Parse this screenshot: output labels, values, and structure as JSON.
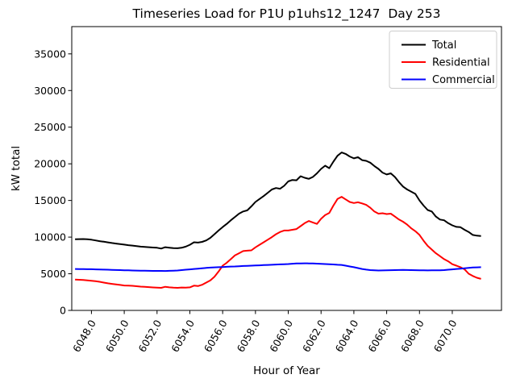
{
  "title": "Timeseries Load for P1U p1uhs12_1247  Day 253",
  "xlabel": "Hour of Year",
  "ylabel": "kW total",
  "legend": {
    "position": "upper right",
    "entries": [
      {
        "label": "Total",
        "color": "#000000"
      },
      {
        "label": "Residential",
        "color": "#ff0000"
      },
      {
        "label": "Commercial",
        "color": "#0000ff"
      }
    ]
  },
  "axis": {
    "xlim": [
      6046.8,
      6073.0
    ],
    "ylim": [
      0,
      38720
    ],
    "xticks": [
      6048,
      6050,
      6052,
      6054,
      6056,
      6058,
      6060,
      6062,
      6064,
      6066,
      6068,
      6070
    ],
    "xtick_labels": [
      "6048.0",
      "6050.0",
      "6052.0",
      "6054.0",
      "6056.0",
      "6058.0",
      "6060.0",
      "6062.0",
      "6064.0",
      "6066.0",
      "6068.0",
      "6070.0"
    ],
    "xtick_rotation": -60,
    "yticks": [
      0,
      5000,
      10000,
      15000,
      20000,
      25000,
      30000,
      35000
    ],
    "ytick_labels": [
      "0",
      "5000",
      "10000",
      "15000",
      "20000",
      "25000",
      "30000",
      "35000"
    ],
    "grid": false
  },
  "chart_data": {
    "type": "line",
    "title": "Timeseries Load for P1U p1uhs12_1247  Day 253",
    "xlabel": "Hour of Year",
    "ylabel": "kW total",
    "xlim": [
      6046.8,
      6073.0
    ],
    "ylim": [
      0,
      38720
    ],
    "legend_position": "upper right",
    "grid": false,
    "x": [
      6047.0,
      6047.25,
      6047.5,
      6047.75,
      6048.0,
      6048.25,
      6048.5,
      6048.75,
      6049.0,
      6049.25,
      6049.5,
      6049.75,
      6050.0,
      6050.25,
      6050.5,
      6050.75,
      6051.0,
      6051.25,
      6051.5,
      6051.75,
      6052.0,
      6052.25,
      6052.5,
      6052.75,
      6053.0,
      6053.25,
      6053.5,
      6053.75,
      6054.0,
      6054.25,
      6054.5,
      6054.75,
      6055.0,
      6055.25,
      6055.5,
      6055.75,
      6056.0,
      6056.25,
      6056.5,
      6056.75,
      6057.0,
      6057.25,
      6057.5,
      6057.75,
      6058.0,
      6058.25,
      6058.5,
      6058.75,
      6059.0,
      6059.25,
      6059.5,
      6059.75,
      6060.0,
      6060.25,
      6060.5,
      6060.75,
      6061.0,
      6061.25,
      6061.5,
      6061.75,
      6062.0,
      6062.25,
      6062.5,
      6062.75,
      6063.0,
      6063.25,
      6063.5,
      6063.75,
      6064.0,
      6064.25,
      6064.5,
      6064.75,
      6065.0,
      6065.25,
      6065.5,
      6065.75,
      6066.0,
      6066.25,
      6066.5,
      6066.75,
      6067.0,
      6067.25,
      6067.5,
      6067.75,
      6068.0,
      6068.25,
      6068.5,
      6068.75,
      6069.0,
      6069.25,
      6069.5,
      6069.75,
      6070.0,
      6070.25,
      6070.5,
      6070.75,
      6071.0,
      6071.25,
      6071.5,
      6071.75
    ],
    "series": [
      {
        "name": "Total",
        "color": "#000000",
        "values": [
          9700,
          9720,
          9730,
          9700,
          9650,
          9550,
          9450,
          9370,
          9280,
          9200,
          9120,
          9050,
          8980,
          8900,
          8840,
          8770,
          8700,
          8660,
          8620,
          8580,
          8550,
          8440,
          8620,
          8560,
          8500,
          8480,
          8550,
          8700,
          8950,
          9300,
          9250,
          9350,
          9550,
          9900,
          10400,
          10900,
          11370,
          11800,
          12300,
          12750,
          13200,
          13500,
          13650,
          14200,
          14800,
          15200,
          15600,
          16050,
          16500,
          16700,
          16600,
          17000,
          17600,
          17800,
          17750,
          18300,
          18100,
          17950,
          18200,
          18700,
          19300,
          19750,
          19400,
          20300,
          21100,
          21550,
          21350,
          21000,
          20750,
          20900,
          20500,
          20400,
          20150,
          19700,
          19300,
          18800,
          18550,
          18700,
          18200,
          17500,
          16900,
          16500,
          16200,
          15900,
          15000,
          14300,
          13700,
          13500,
          12800,
          12400,
          12300,
          11900,
          11600,
          11400,
          11350,
          11000,
          10700,
          10300,
          10200,
          10150
        ]
      },
      {
        "name": "Residential",
        "color": "#ff0000",
        "values": [
          4200,
          4180,
          4150,
          4100,
          4050,
          3980,
          3900,
          3800,
          3700,
          3620,
          3550,
          3480,
          3400,
          3380,
          3350,
          3300,
          3250,
          3220,
          3180,
          3140,
          3100,
          3080,
          3220,
          3150,
          3100,
          3080,
          3120,
          3100,
          3150,
          3380,
          3320,
          3500,
          3800,
          4100,
          4600,
          5300,
          6100,
          6500,
          7000,
          7500,
          7800,
          8100,
          8150,
          8200,
          8600,
          8950,
          9300,
          9650,
          10000,
          10400,
          10700,
          10900,
          10900,
          11000,
          11100,
          11500,
          11900,
          12200,
          12000,
          11800,
          12500,
          13000,
          13300,
          14300,
          15200,
          15500,
          15150,
          14800,
          14650,
          14750,
          14600,
          14400,
          14000,
          13500,
          13200,
          13250,
          13150,
          13200,
          12800,
          12400,
          12100,
          11700,
          11200,
          10800,
          10300,
          9500,
          8800,
          8300,
          7800,
          7400,
          7000,
          6700,
          6300,
          6100,
          5900,
          5600,
          5000,
          4700,
          4450,
          4300
        ]
      },
      {
        "name": "Commercial",
        "color": "#0000ff",
        "values": [
          5650,
          5640,
          5630,
          5625,
          5620,
          5600,
          5580,
          5565,
          5550,
          5530,
          5510,
          5495,
          5480,
          5465,
          5450,
          5435,
          5420,
          5410,
          5400,
          5395,
          5390,
          5385,
          5380,
          5400,
          5420,
          5450,
          5500,
          5550,
          5600,
          5650,
          5700,
          5750,
          5800,
          5840,
          5870,
          5900,
          5920,
          5950,
          5980,
          6000,
          6030,
          6060,
          6080,
          6100,
          6130,
          6150,
          6180,
          6200,
          6230,
          6260,
          6280,
          6300,
          6330,
          6370,
          6400,
          6410,
          6420,
          6410,
          6400,
          6380,
          6350,
          6330,
          6300,
          6270,
          6230,
          6200,
          6100,
          6000,
          5900,
          5780,
          5650,
          5570,
          5500,
          5470,
          5450,
          5460,
          5480,
          5490,
          5500,
          5510,
          5520,
          5510,
          5500,
          5490,
          5480,
          5470,
          5460,
          5465,
          5470,
          5480,
          5500,
          5550,
          5600,
          5650,
          5700,
          5750,
          5800,
          5850,
          5870,
          5900
        ]
      }
    ]
  }
}
